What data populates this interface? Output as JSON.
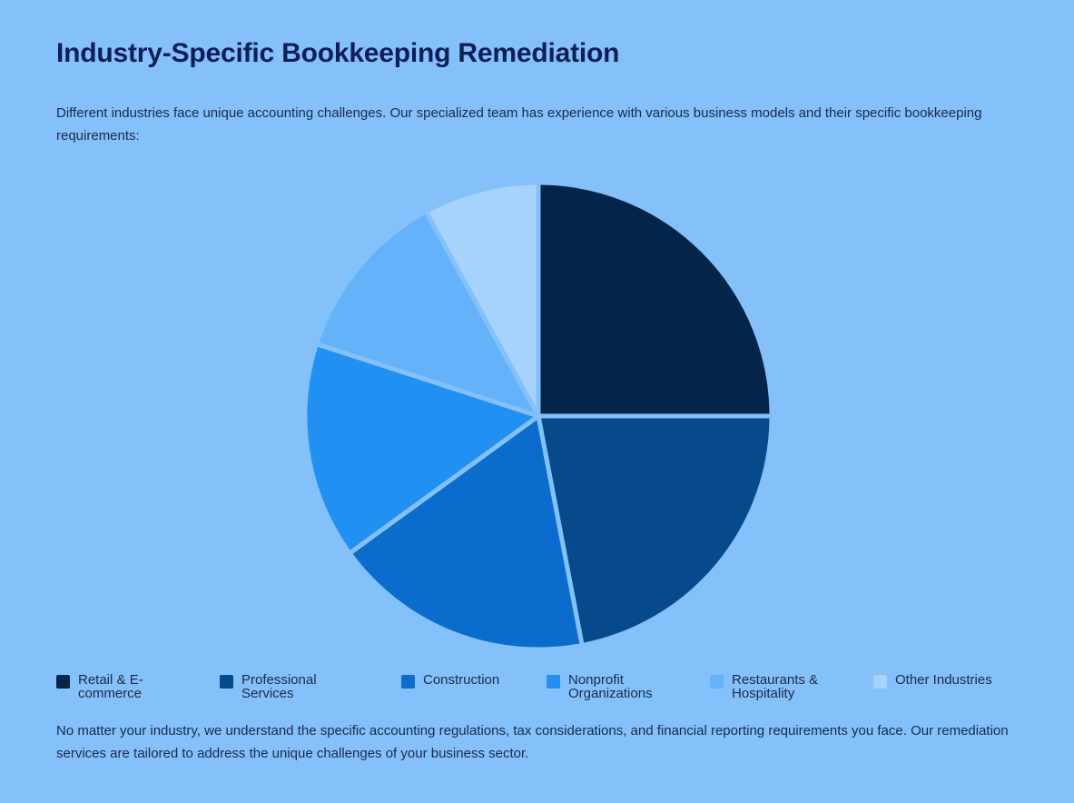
{
  "page": {
    "title": "Industry-Specific Bookkeeping Remediation",
    "intro": "Different industries face unique accounting challenges. Our specialized team has experience with various business models and their specific bookkeeping requirements:",
    "outro": "No matter your industry, we understand the specific accounting regulations, tax considerations, and financial reporting requirements you face. Our remediation services are tailored to address the unique challenges of your business sector."
  },
  "chart_data": {
    "type": "pie",
    "title": "",
    "legend_position": "bottom",
    "series": [
      {
        "name": "Retail & E-commerce",
        "value": 25,
        "color": "#032549"
      },
      {
        "name": "Professional Services",
        "value": 22,
        "color": "#064a8c"
      },
      {
        "name": "Construction",
        "value": 18,
        "color": "#0a6dcd"
      },
      {
        "name": "Nonprofit Organizations",
        "value": 15,
        "color": "#2190f3"
      },
      {
        "name": "Restaurants & Hospitality",
        "value": 12,
        "color": "#64b3fa"
      },
      {
        "name": "Other Industries",
        "value": 8,
        "color": "#a6d3fc"
      }
    ]
  }
}
